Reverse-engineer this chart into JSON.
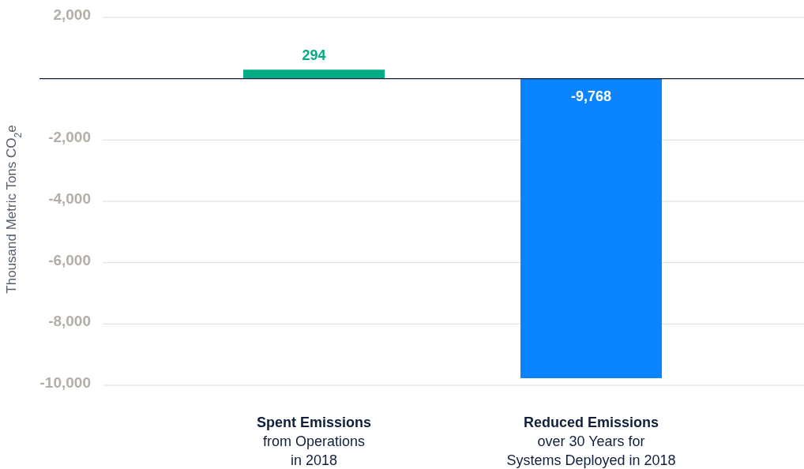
{
  "chart_data": {
    "type": "bar",
    "ylabel": "Thousand Metric Tons CO$_{2}$e",
    "categories": [
      "Spent Emissions\nfrom Operations\nin 2018",
      "Reduced Emissions\nover 30 Years for\nSystems Deployed in 2018"
    ],
    "values": [
      294,
      -9768
    ],
    "colors": [
      "#00ad84",
      "#0a84ff"
    ],
    "ylim": [
      -10000,
      2000
    ],
    "yticks": [
      {
        "value": -10000,
        "label": "-10,000"
      },
      {
        "value": -8000,
        "label": "-8,000"
      },
      {
        "value": -6000,
        "label": "-6,000"
      },
      {
        "value": -4000,
        "label": "-4,000"
      },
      {
        "value": -2000,
        "label": "-2,000"
      },
      {
        "value": 0,
        "label": null
      },
      {
        "value": 2000,
        "label": "2,000"
      }
    ],
    "grid": "y",
    "value_labels": [
      "294",
      "-9,768"
    ]
  }
}
